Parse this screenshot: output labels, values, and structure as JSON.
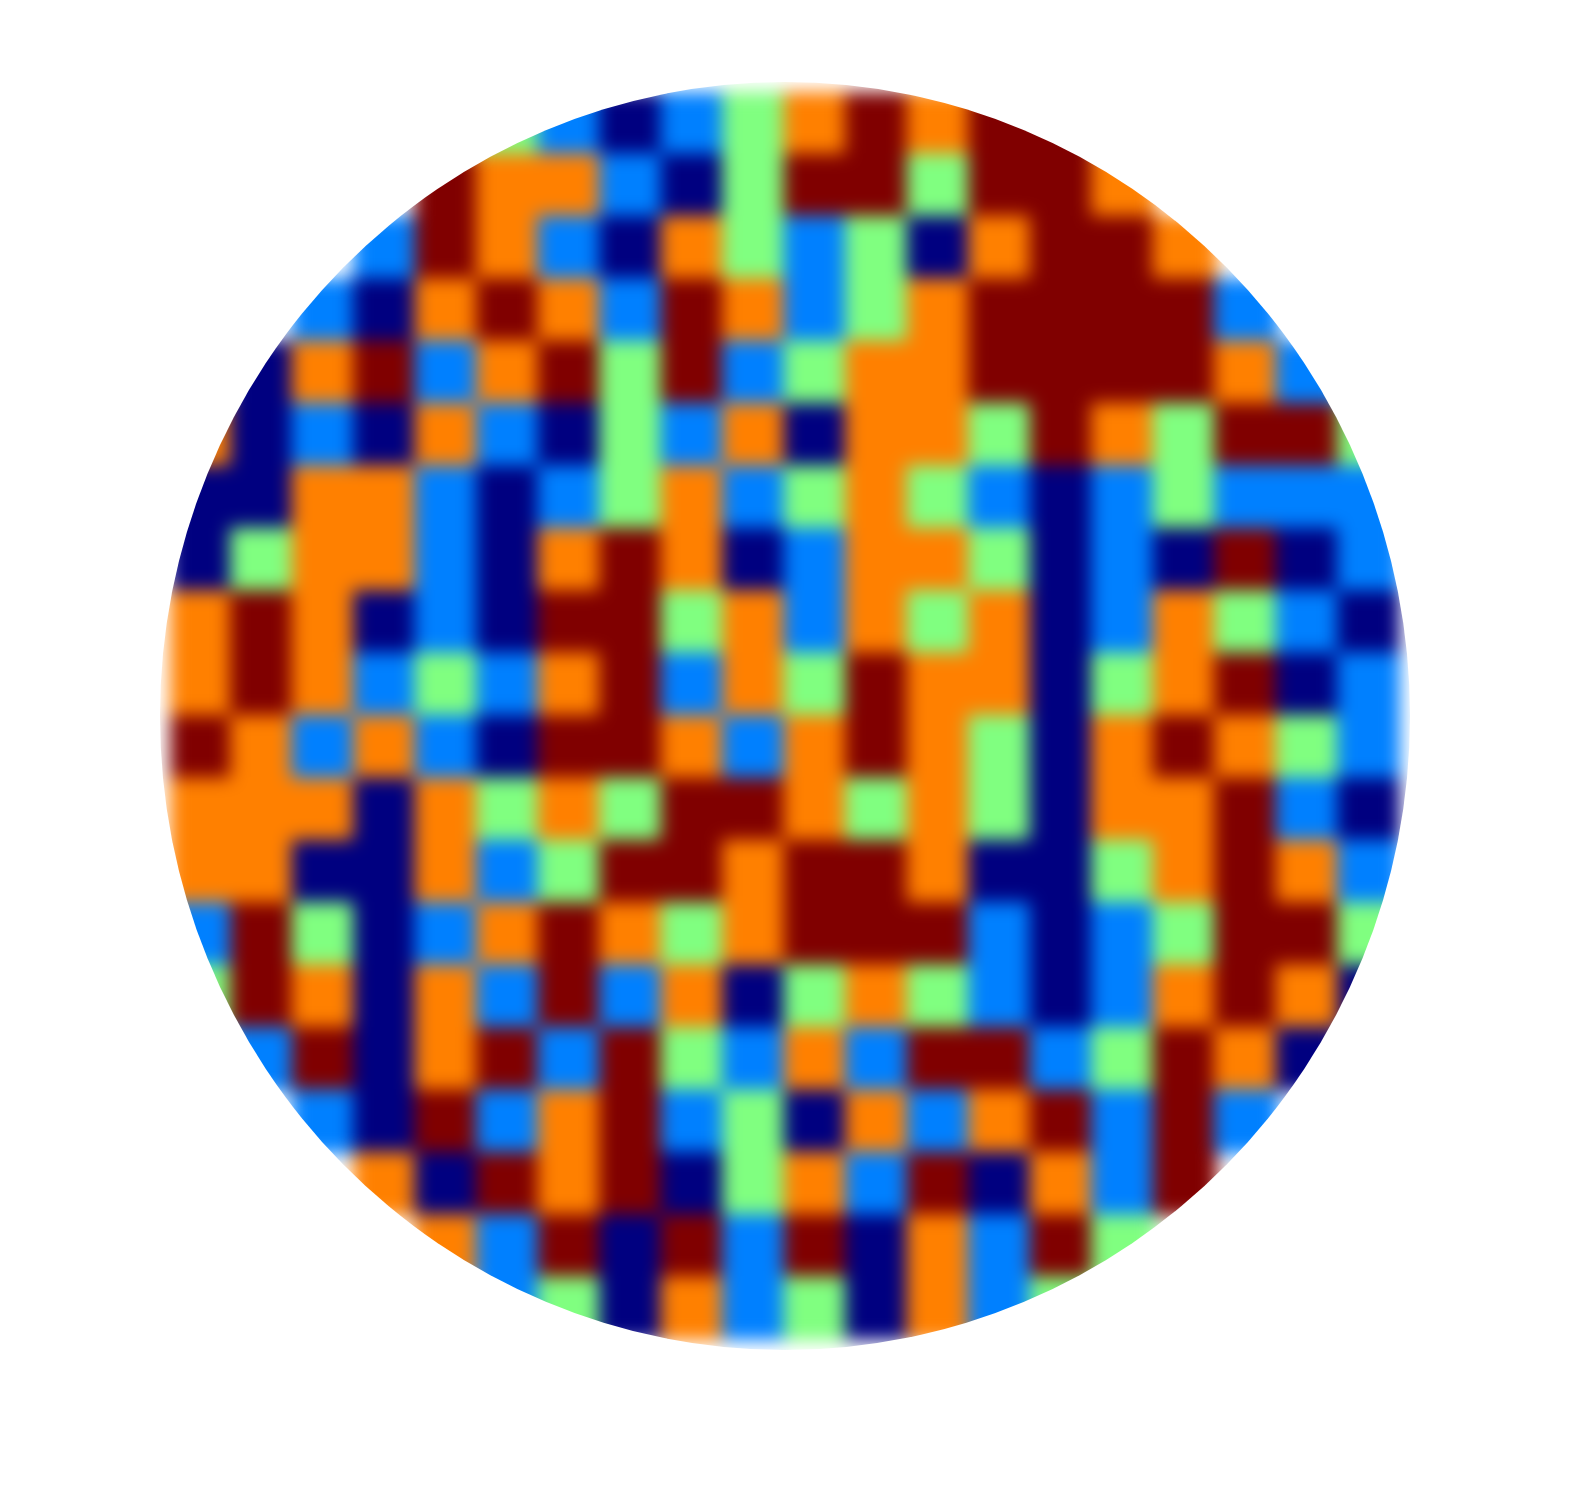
{
  "chart_data": {
    "type": "heatmap",
    "grid": false,
    "tick_labels": false,
    "cells": [
      [
        null,
        null,
        null,
        null,
        null,
        0,
        -0.5,
        -1,
        -0.5,
        0,
        0.5,
        1,
        0.5,
        1,
        1,
        null,
        null,
        null,
        null,
        null
      ],
      [
        null,
        null,
        null,
        null,
        1,
        0.5,
        0.5,
        -0.5,
        -1,
        0,
        1,
        1,
        0,
        1,
        1,
        0.5,
        null,
        null,
        null,
        null
      ],
      [
        null,
        null,
        null,
        -0.5,
        1,
        0.5,
        -0.5,
        -1,
        0.5,
        0,
        -0.5,
        0,
        -1,
        0.5,
        1,
        1,
        0.5,
        null,
        null,
        null
      ],
      [
        null,
        null,
        -0.5,
        -1,
        0.5,
        1,
        0.5,
        -0.5,
        1,
        0.5,
        -0.5,
        0,
        0.5,
        1,
        1,
        1,
        1,
        -0.5,
        null,
        null
      ],
      [
        null,
        -1,
        0.5,
        1,
        -0.5,
        0.5,
        1,
        0,
        1,
        -0.5,
        0,
        0.5,
        0.5,
        1,
        1,
        1,
        1,
        0.5,
        -0.5,
        null
      ],
      [
        0.5,
        -1,
        -0.5,
        -1,
        0.5,
        -0.5,
        -1,
        0,
        -0.5,
        0.5,
        -1,
        0.5,
        0.5,
        0,
        1,
        0.5,
        0,
        1,
        1,
        0
      ],
      [
        -1,
        -1,
        0.5,
        0.5,
        -0.5,
        -1,
        -0.5,
        0,
        0.5,
        -0.5,
        0,
        0.5,
        0,
        -0.5,
        -1,
        -0.5,
        0,
        -0.5,
        -0.5,
        -0.5
      ],
      [
        -1,
        0,
        0.5,
        0.5,
        -0.5,
        -1,
        0.5,
        1,
        0.5,
        -1,
        -0.5,
        0.5,
        0.5,
        0,
        -1,
        -0.5,
        -1,
        1,
        -1,
        -0.5
      ],
      [
        0.5,
        1,
        0.5,
        -1,
        -0.5,
        -1,
        1,
        1,
        0,
        0.5,
        -0.5,
        0.5,
        0,
        0.5,
        -1,
        -0.5,
        0.5,
        0,
        -0.5,
        -1
      ],
      [
        0.5,
        1,
        0.5,
        -0.5,
        0,
        -0.5,
        0.5,
        1,
        -0.5,
        0.5,
        0,
        1,
        0.5,
        0.5,
        -1,
        0,
        0.5,
        1,
        -1,
        -0.5
      ],
      [
        1,
        0.5,
        -0.5,
        0.5,
        -0.5,
        -1,
        1,
        1,
        0.5,
        -0.5,
        0.5,
        1,
        0.5,
        0,
        -1,
        0.5,
        1,
        0.5,
        0,
        -0.5
      ],
      [
        0.5,
        0.5,
        0.5,
        -1,
        0.5,
        0,
        0.5,
        0,
        1,
        1,
        0.5,
        0,
        0.5,
        0,
        -1,
        0.5,
        0.5,
        1,
        -0.5,
        -1
      ],
      [
        0.5,
        0.5,
        -1,
        -1,
        0.5,
        -0.5,
        0,
        1,
        1,
        0.5,
        1,
        1,
        0.5,
        -1,
        -1,
        0,
        0.5,
        1,
        0.5,
        -0.5
      ],
      [
        -0.5,
        1,
        0,
        -1,
        -0.5,
        0.5,
        1,
        0.5,
        0,
        0.5,
        1,
        1,
        1,
        -0.5,
        -1,
        -0.5,
        0,
        1,
        1,
        0
      ],
      [
        0,
        1,
        0.5,
        -1,
        0.5,
        -0.5,
        1,
        -0.5,
        0.5,
        -1,
        0,
        0.5,
        0,
        -0.5,
        -1,
        -0.5,
        0.5,
        1,
        0.5,
        -1
      ],
      [
        null,
        -0.5,
        1,
        -1,
        0.5,
        1,
        -0.5,
        1,
        0,
        -0.5,
        0.5,
        -0.5,
        1,
        1,
        -0.5,
        0,
        1,
        0.5,
        -1,
        null
      ],
      [
        null,
        null,
        -0.5,
        -1,
        1,
        -0.5,
        0.5,
        1,
        -0.5,
        0,
        -1,
        0.5,
        -0.5,
        0.5,
        1,
        -0.5,
        1,
        -0.5,
        null,
        null
      ],
      [
        null,
        null,
        null,
        0.5,
        -1,
        1,
        0.5,
        1,
        -1,
        0,
        0.5,
        -0.5,
        1,
        -1,
        0.5,
        -0.5,
        1,
        null,
        null,
        null
      ],
      [
        null,
        null,
        null,
        null,
        0.5,
        -0.5,
        1,
        -1,
        1,
        -0.5,
        1,
        -1,
        0.5,
        -0.5,
        1,
        0,
        null,
        null,
        null,
        null
      ],
      [
        null,
        null,
        null,
        null,
        null,
        -0.5,
        0,
        -1,
        0.5,
        -0.5,
        0,
        -1,
        0.5,
        -0.5,
        0,
        null,
        null,
        null,
        null,
        null
      ]
    ]
  }
}
